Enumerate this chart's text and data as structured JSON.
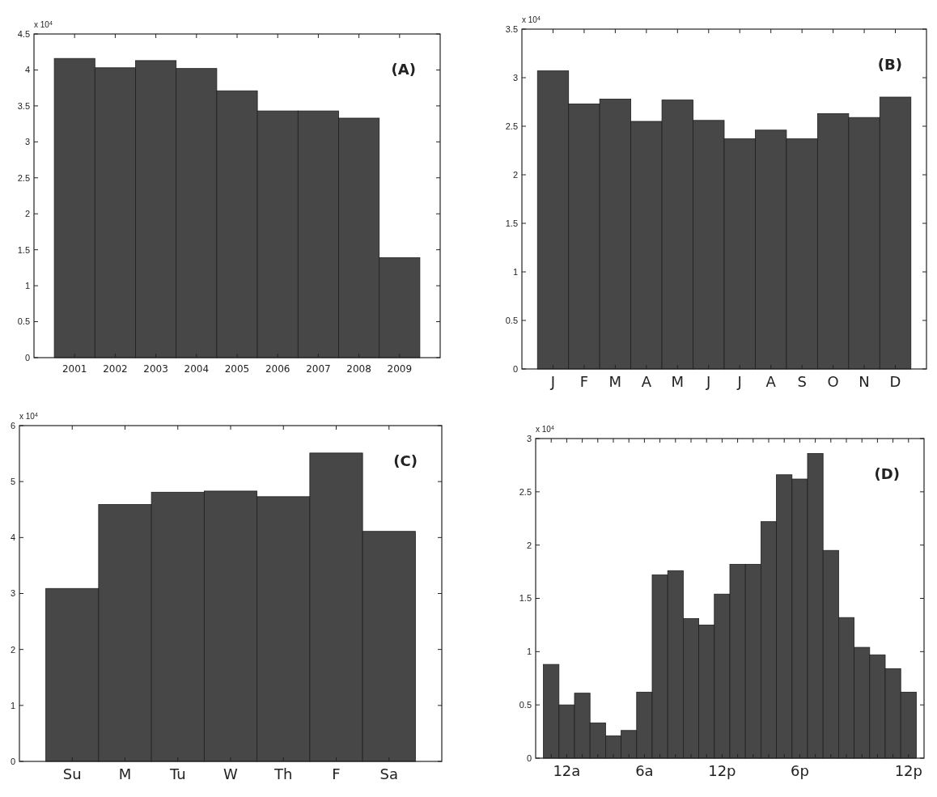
{
  "chart_data": [
    {
      "type": "bar",
      "categories": [
        "2001",
        "2002",
        "2003",
        "2004",
        "2005",
        "2006",
        "2007",
        "2008",
        "2009"
      ],
      "values": [
        4.16,
        4.03,
        4.13,
        4.02,
        3.71,
        3.43,
        3.43,
        3.33,
        1.39
      ],
      "color": "#474747",
      "ylim": [
        0,
        4.5
      ],
      "yticks": [
        0,
        0.5,
        1,
        1.5,
        2,
        2.5,
        3,
        3.5,
        4,
        4.5
      ],
      "annotations": [
        "x 10$^{4}$",
        "(A)"
      ]
    },
    {
      "type": "bar",
      "categories": [
        "J",
        "F",
        "M",
        "A",
        "M",
        "J",
        "J",
        "A",
        "S",
        "O",
        "N",
        "D"
      ],
      "values": [
        3.07,
        2.73,
        2.78,
        2.55,
        2.77,
        2.56,
        2.37,
        2.46,
        2.37,
        2.63,
        2.59,
        2.8
      ],
      "color": "#474747",
      "ylim": [
        0,
        3.5
      ],
      "yticks": [
        0,
        0.5,
        1,
        1.5,
        2,
        2.5,
        3,
        3.5
      ],
      "annotations": [
        "x 10$^{4}$",
        "(B)"
      ]
    },
    {
      "type": "bar",
      "categories": [
        "Su",
        "M",
        "Tu",
        "W",
        "Th",
        "F",
        "Sa"
      ],
      "values": [
        3.09,
        4.59,
        4.81,
        4.83,
        4.73,
        5.51,
        4.11
      ],
      "color": "#474747",
      "ylim": [
        0,
        6
      ],
      "yticks": [
        0,
        1,
        2,
        3,
        4,
        5,
        6
      ],
      "annotations": [
        "x 10$^{4}$",
        "(C)"
      ]
    },
    {
      "type": "bar",
      "categories": [
        null,
        "12a",
        null,
        null,
        null,
        null,
        "6a",
        null,
        null,
        null,
        null,
        "12p",
        null,
        null,
        null,
        null,
        "6p",
        null,
        null,
        null,
        null,
        null,
        null,
        "12p"
      ],
      "values": [
        0.88,
        0.5,
        0.61,
        0.33,
        0.21,
        0.26,
        0.62,
        1.72,
        1.76,
        1.31,
        1.25,
        1.54,
        1.82,
        1.82,
        2.22,
        2.66,
        2.62,
        2.86,
        1.95,
        1.32,
        1.04,
        0.97,
        0.84,
        0.62
      ],
      "color": "#474747",
      "ylim": [
        0,
        3
      ],
      "yticks": [
        0,
        0.5,
        1,
        1.5,
        2,
        2.5,
        3
      ],
      "annotations": [
        "x 10$^{4}$",
        "(D)"
      ]
    }
  ]
}
